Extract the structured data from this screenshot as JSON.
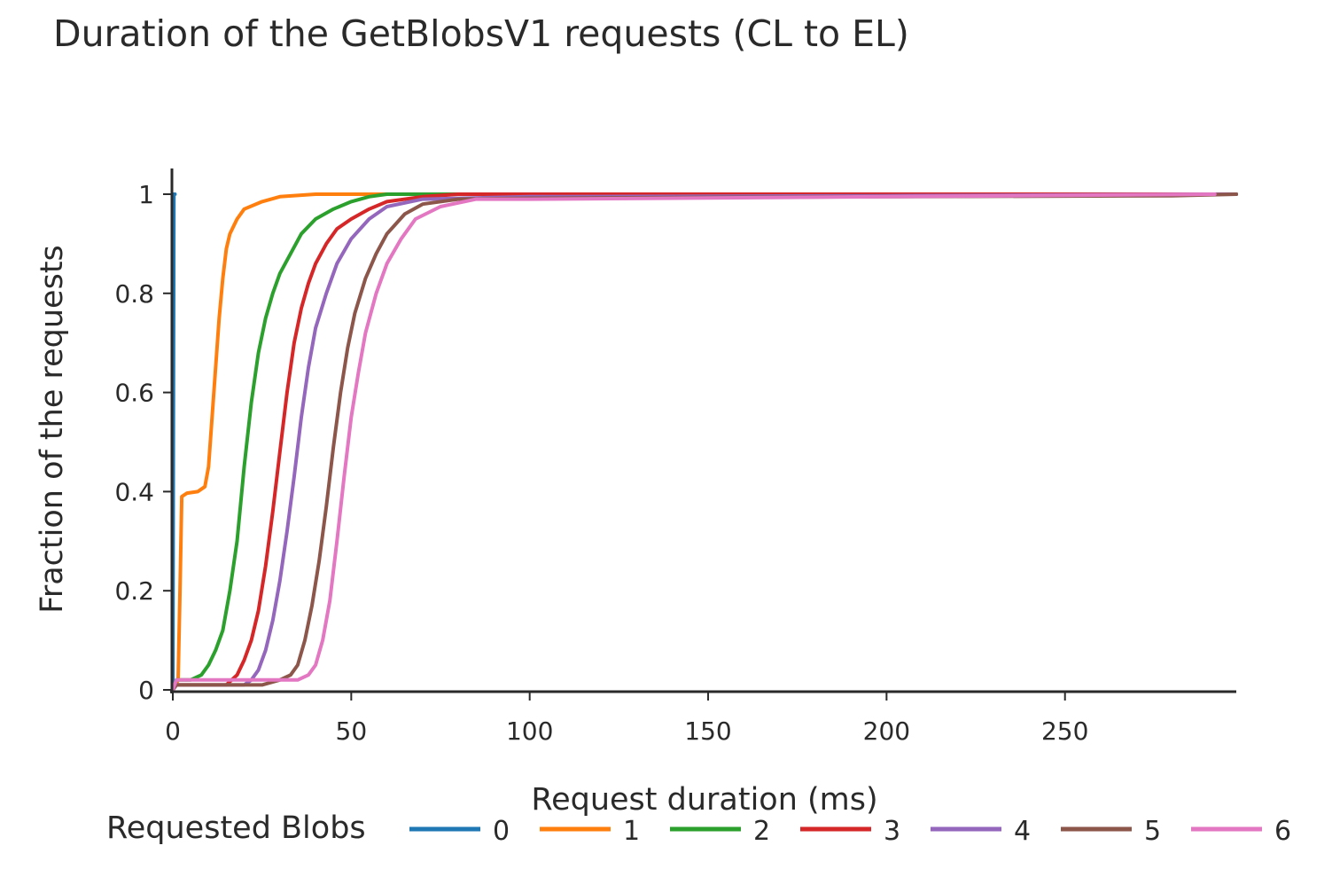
{
  "chart_data": {
    "type": "line",
    "title": "Duration of the GetBlobsV1 requests (CL to EL)",
    "xlabel": "Request duration (ms)",
    "ylabel": "Fraction of the requests",
    "xlim": [
      0,
      298
    ],
    "ylim": [
      0,
      1.05
    ],
    "x_ticks": [
      0,
      50,
      100,
      150,
      200,
      250
    ],
    "y_ticks": [
      0,
      0.2,
      0.4,
      0.6,
      0.8,
      1
    ],
    "x_tick_labels": [
      "0",
      "50",
      "100",
      "150",
      "200",
      "250"
    ],
    "y_tick_labels": [
      "0",
      "0.2",
      "0.4",
      "0.6",
      "0.8",
      "1"
    ],
    "grid": false,
    "legend": {
      "title": "Requested Blobs",
      "position": "bottom"
    },
    "series": [
      {
        "name": "0",
        "color": "#1f77b4",
        "points": [
          [
            0,
            0
          ],
          [
            0.3,
            1
          ],
          [
            0.6,
            1
          ]
        ]
      },
      {
        "name": "1",
        "color": "#ff7f0e",
        "points": [
          [
            0,
            0
          ],
          [
            1.5,
            0.02
          ],
          [
            2,
            0.2
          ],
          [
            2.5,
            0.39
          ],
          [
            4,
            0.397
          ],
          [
            7,
            0.4
          ],
          [
            9,
            0.41
          ],
          [
            10,
            0.45
          ],
          [
            11,
            0.55
          ],
          [
            12,
            0.65
          ],
          [
            13,
            0.75
          ],
          [
            14,
            0.83
          ],
          [
            15,
            0.89
          ],
          [
            16,
            0.92
          ],
          [
            18,
            0.95
          ],
          [
            20,
            0.97
          ],
          [
            25,
            0.985
          ],
          [
            30,
            0.995
          ],
          [
            40,
            1.0
          ],
          [
            298,
            1.0
          ]
        ]
      },
      {
        "name": "2",
        "color": "#2ca02c",
        "points": [
          [
            0,
            0
          ],
          [
            1,
            0.02
          ],
          [
            5,
            0.02
          ],
          [
            8,
            0.03
          ],
          [
            10,
            0.05
          ],
          [
            12,
            0.08
          ],
          [
            14,
            0.12
          ],
          [
            16,
            0.2
          ],
          [
            18,
            0.3
          ],
          [
            20,
            0.45
          ],
          [
            22,
            0.58
          ],
          [
            24,
            0.68
          ],
          [
            26,
            0.75
          ],
          [
            28,
            0.8
          ],
          [
            30,
            0.84
          ],
          [
            33,
            0.88
          ],
          [
            36,
            0.92
          ],
          [
            40,
            0.95
          ],
          [
            45,
            0.97
          ],
          [
            50,
            0.985
          ],
          [
            55,
            0.995
          ],
          [
            60,
            1.0
          ],
          [
            298,
            1.0
          ]
        ]
      },
      {
        "name": "3",
        "color": "#d62728",
        "points": [
          [
            0,
            0
          ],
          [
            1,
            0.01
          ],
          [
            15,
            0.01
          ],
          [
            18,
            0.03
          ],
          [
            20,
            0.06
          ],
          [
            22,
            0.1
          ],
          [
            24,
            0.16
          ],
          [
            26,
            0.25
          ],
          [
            28,
            0.36
          ],
          [
            30,
            0.48
          ],
          [
            32,
            0.6
          ],
          [
            34,
            0.7
          ],
          [
            36,
            0.77
          ],
          [
            38,
            0.82
          ],
          [
            40,
            0.86
          ],
          [
            43,
            0.9
          ],
          [
            46,
            0.93
          ],
          [
            50,
            0.95
          ],
          [
            55,
            0.97
          ],
          [
            60,
            0.985
          ],
          [
            70,
            0.995
          ],
          [
            80,
            1.0
          ],
          [
            298,
            1.0
          ]
        ]
      },
      {
        "name": "4",
        "color": "#9467bd",
        "points": [
          [
            0,
            0
          ],
          [
            1,
            0.01
          ],
          [
            20,
            0.01
          ],
          [
            22,
            0.02
          ],
          [
            24,
            0.04
          ],
          [
            26,
            0.08
          ],
          [
            28,
            0.14
          ],
          [
            30,
            0.22
          ],
          [
            32,
            0.32
          ],
          [
            34,
            0.43
          ],
          [
            36,
            0.55
          ],
          [
            38,
            0.65
          ],
          [
            40,
            0.73
          ],
          [
            43,
            0.8
          ],
          [
            46,
            0.86
          ],
          [
            50,
            0.91
          ],
          [
            55,
            0.95
          ],
          [
            60,
            0.975
          ],
          [
            70,
            0.99
          ],
          [
            100,
            0.995
          ],
          [
            200,
            0.997
          ],
          [
            298,
            1.0
          ]
        ]
      },
      {
        "name": "5",
        "color": "#8c564b",
        "points": [
          [
            0,
            0
          ],
          [
            1,
            0.01
          ],
          [
            25,
            0.01
          ],
          [
            30,
            0.02
          ],
          [
            33,
            0.03
          ],
          [
            35,
            0.05
          ],
          [
            37,
            0.1
          ],
          [
            39,
            0.17
          ],
          [
            41,
            0.26
          ],
          [
            43,
            0.37
          ],
          [
            45,
            0.49
          ],
          [
            47,
            0.6
          ],
          [
            49,
            0.69
          ],
          [
            51,
            0.76
          ],
          [
            54,
            0.83
          ],
          [
            57,
            0.88
          ],
          [
            60,
            0.92
          ],
          [
            65,
            0.96
          ],
          [
            70,
            0.98
          ],
          [
            80,
            0.99
          ],
          [
            100,
            0.992
          ],
          [
            200,
            0.995
          ],
          [
            280,
            0.997
          ],
          [
            298,
            1.0
          ]
        ]
      },
      {
        "name": "6",
        "color": "#e377c2",
        "points": [
          [
            0,
            0
          ],
          [
            1,
            0.02
          ],
          [
            30,
            0.02
          ],
          [
            35,
            0.02
          ],
          [
            38,
            0.03
          ],
          [
            40,
            0.05
          ],
          [
            42,
            0.1
          ],
          [
            44,
            0.18
          ],
          [
            46,
            0.3
          ],
          [
            48,
            0.43
          ],
          [
            50,
            0.55
          ],
          [
            52,
            0.64
          ],
          [
            54,
            0.72
          ],
          [
            57,
            0.8
          ],
          [
            60,
            0.86
          ],
          [
            64,
            0.91
          ],
          [
            68,
            0.95
          ],
          [
            75,
            0.975
          ],
          [
            85,
            0.99
          ],
          [
            100,
            0.99
          ],
          [
            200,
            0.995
          ],
          [
            292,
            1.0
          ]
        ]
      }
    ]
  }
}
